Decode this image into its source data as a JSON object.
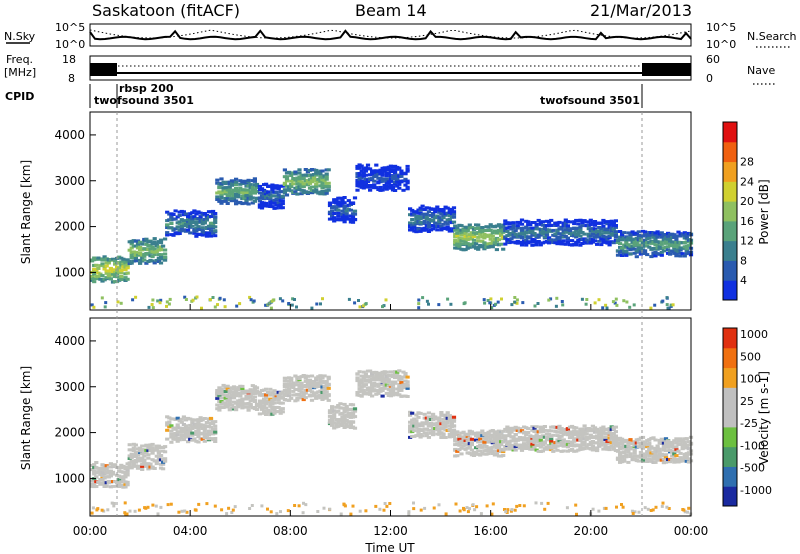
{
  "header": {
    "station": "Saskatoon (fitACF)",
    "beam": "Beam 14",
    "date": "21/Mar/2013"
  },
  "top_panel": {
    "left_label": "N.Sky",
    "left_ticks": [
      "10^5",
      "10^0"
    ],
    "right_ticks": [
      "10^5",
      "10^0"
    ],
    "right_label": "N.Search"
  },
  "freq_panel": {
    "left_label_1": "Freq.",
    "left_label_2": "[MHz]",
    "left_ticks": [
      "18",
      "8"
    ],
    "right_ticks": [
      "60",
      "0"
    ],
    "right_label": "Nave"
  },
  "cpid": {
    "label": "CPID",
    "segments": [
      {
        "name": "twofsound 3501",
        "start": "00:00",
        "end": "01:00"
      },
      {
        "name": "rbsp 200",
        "start": "01:00",
        "end": "21:50"
      },
      {
        "name": "twofsound 3501",
        "start": "21:50",
        "end": "24:00"
      }
    ]
  },
  "x_axis": {
    "ticks": [
      "00:00",
      "04:00",
      "08:00",
      "12:00",
      "16:00",
      "20:00",
      "00:00"
    ],
    "label": "Time UT"
  },
  "power_panel": {
    "ylabel": "Slant Range [km]",
    "yticks": [
      "1000",
      "2000",
      "3000",
      "4000"
    ],
    "colorbar": {
      "label": "Power [dB]",
      "ticks": [
        "4",
        "8",
        "12",
        "16",
        "20",
        "24",
        "28"
      ],
      "colors": [
        "#1030e0",
        "#2a5bb0",
        "#3a7f8e",
        "#5aa37a",
        "#8fc060",
        "#d0d030",
        "#f0a020",
        "#f06010",
        "#e01010"
      ]
    }
  },
  "velocity_panel": {
    "ylabel": "Slant Range [km]",
    "yticks": [
      "1000",
      "2000",
      "3000",
      "4000"
    ],
    "colorbar": {
      "label": "Velocity [m s-1]",
      "ticks": [
        "1000",
        "500",
        "100",
        "25",
        "-25",
        "-100",
        "-500",
        "-1000"
      ],
      "colors": [
        "#1a2aa0",
        "#2f6fb0",
        "#4a9a6a",
        "#6cc040",
        "#c0c0c0",
        "#c0c0c0",
        "#f0a020",
        "#f07010",
        "#e03010"
      ]
    }
  },
  "chart_data": {
    "type": "heatmap",
    "title": "Saskatoon (fitACF) Beam 14 21/Mar/2013",
    "xlabel": "Time UT",
    "ylabel": "Slant Range [km]",
    "xlim": [
      0,
      24
    ],
    "ylim": [
      180,
      4500
    ],
    "echo_bands": [
      {
        "from_h": 0.0,
        "to_h": 1.5,
        "range_km": 1100,
        "power_db": 24
      },
      {
        "from_h": 1.5,
        "to_h": 3.0,
        "range_km": 1500,
        "power_db": 20
      },
      {
        "from_h": 3.0,
        "to_h": 5.0,
        "range_km": 2100,
        "power_db": 14
      },
      {
        "from_h": 5.0,
        "to_h": 6.7,
        "range_km": 2800,
        "power_db": 18
      },
      {
        "from_h": 6.7,
        "to_h": 7.7,
        "range_km": 2700,
        "power_db": 10
      },
      {
        "from_h": 7.7,
        "to_h": 9.5,
        "range_km": 3000,
        "power_db": 20
      },
      {
        "from_h": 9.5,
        "to_h": 10.6,
        "range_km": 2400,
        "power_db": 10
      },
      {
        "from_h": 10.6,
        "to_h": 12.7,
        "range_km": 3100,
        "power_db": 8
      },
      {
        "from_h": 12.7,
        "to_h": 14.5,
        "range_km": 2200,
        "power_db": 12
      },
      {
        "from_h": 14.5,
        "to_h": 16.5,
        "range_km": 1800,
        "power_db": 22
      },
      {
        "from_h": 16.5,
        "to_h": 21.0,
        "range_km": 1900,
        "power_db": 12
      },
      {
        "from_h": 21.0,
        "to_h": 24.0,
        "range_km": 1650,
        "power_db": 16
      }
    ]
  }
}
